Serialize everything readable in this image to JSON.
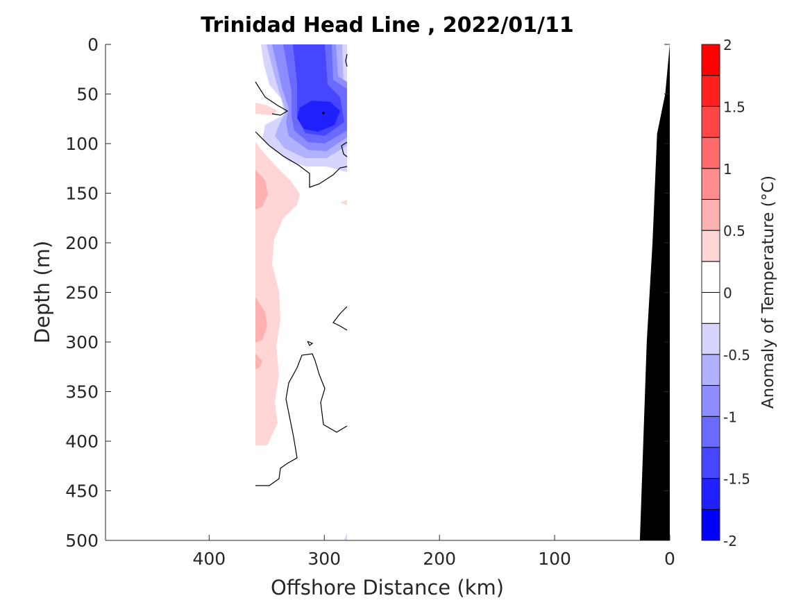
{
  "chart_data": {
    "type": "heatmap",
    "title": "Trinidad Head Line , 2022/01/11",
    "xlabel": "Offshore Distance (km)",
    "ylabel": "Depth (m)",
    "xlim": [
      490,
      0
    ],
    "ylim": [
      0,
      500
    ],
    "x_ticks": [
      400,
      300,
      200,
      100,
      0
    ],
    "y_ticks": [
      0,
      50,
      100,
      150,
      200,
      250,
      300,
      350,
      400,
      450,
      500
    ],
    "grid": false,
    "colorbar": {
      "label": "Anomaly of Temperature (°C)",
      "range": [
        -2,
        2
      ],
      "step": 0.25,
      "tick_values": [
        2,
        1.5,
        1,
        0.5,
        0,
        -0.5,
        -1,
        -1.5,
        -2
      ],
      "tick_labels": [
        "2",
        "1.5",
        "1",
        "0.5",
        "0",
        "-0.5",
        "-1",
        "-1.5",
        "-2"
      ],
      "colors": [
        "#0000ff",
        "#2020ff",
        "#4646ff",
        "#6a6aff",
        "#8d8dff",
        "#b1b1ff",
        "#d5d5ff",
        "#ffffff",
        "#ffffff",
        "#ffd5d5",
        "#ffb1b1",
        "#ff8d8d",
        "#ff6a6a",
        "#ff4646",
        "#ff2020",
        "#ff0000"
      ]
    },
    "data_extent_km": [
      280,
      360
    ],
    "data_max_depth_m": 405,
    "features": [
      {
        "name": "cold anomaly core",
        "sign": "negative",
        "center_km": 300,
        "center_depth_m": 72,
        "min_value": -1.75,
        "depth_range_m": [
          0,
          130
        ],
        "km_range": [
          280,
          360
        ]
      },
      {
        "name": "warm anomaly band",
        "sign": "positive",
        "max_value": 0.75,
        "depth_range_m": [
          60,
          405
        ],
        "km_range": [
          330,
          360
        ]
      }
    ],
    "bathymetry": {
      "fill_color": "#000000",
      "points": [
        [
          0,
          0
        ],
        [
          4,
          50
        ],
        [
          11,
          90
        ],
        [
          15,
          200
        ],
        [
          20,
          300
        ],
        [
          26,
          500
        ]
      ]
    }
  }
}
